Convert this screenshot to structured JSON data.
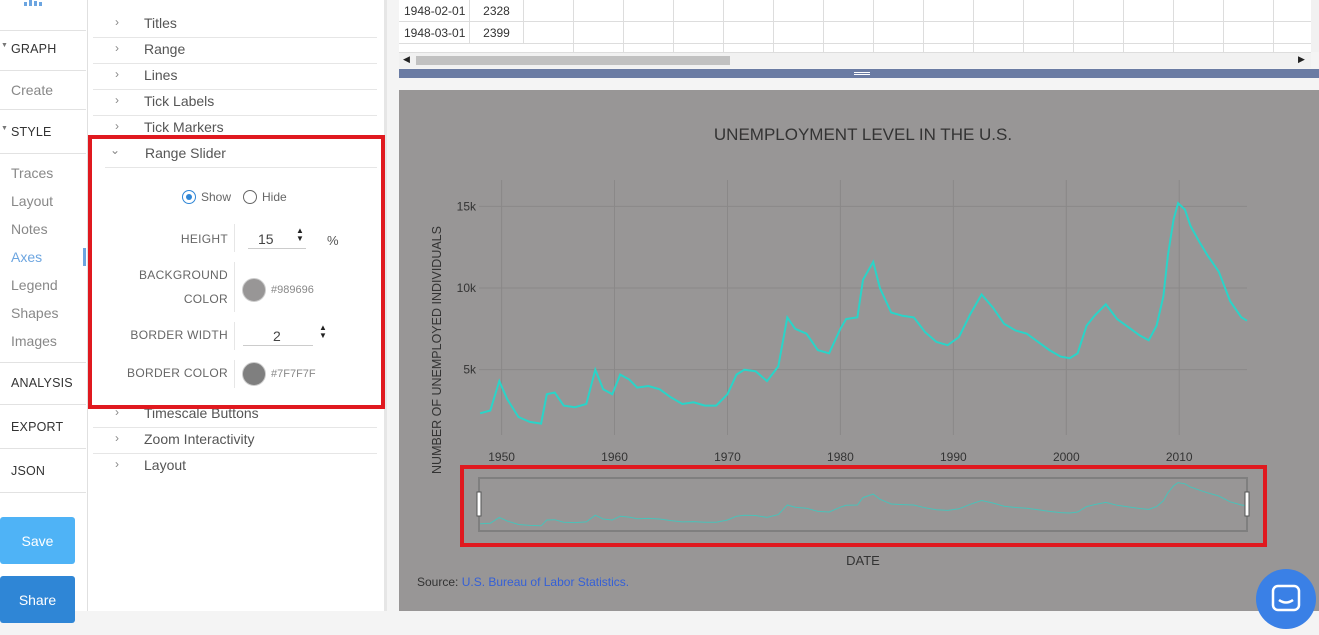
{
  "nav": {
    "sections": [
      {
        "label": "GRAPH",
        "expandable": true
      },
      {
        "label": "STYLE",
        "expandable": true
      },
      {
        "label": "ANALYSIS",
        "expandable": false
      },
      {
        "label": "EXPORT",
        "expandable": false
      },
      {
        "label": "JSON",
        "expandable": false
      }
    ],
    "create_label": "Create",
    "style_items": [
      "Traces",
      "Layout",
      "Notes",
      "Axes",
      "Legend",
      "Shapes",
      "Images"
    ],
    "active_item": "Axes",
    "save_label": "Save",
    "share_label": "Share",
    "save_color": "#4fb3f6",
    "share_color": "#2f86d6"
  },
  "panel": {
    "sections_above": [
      "Titles",
      "Range",
      "Lines",
      "Tick Labels",
      "Tick Markers"
    ],
    "open_section": "Range Slider",
    "sections_below": [
      "Timescale Buttons",
      "Zoom Interactivity",
      "Layout"
    ],
    "range_slider": {
      "show_label": "Show",
      "hide_label": "Hide",
      "selected": "Show",
      "height_label": "HEIGHT",
      "height_value": "15",
      "height_unit": "%",
      "bg_color_label_1": "BACKGROUND",
      "bg_color_label_2": "COLOR",
      "bg_color_value": "#989696",
      "border_width_label": "BORDER WIDTH",
      "border_width_value": "2",
      "border_color_label": "BORDER COLOR",
      "border_color_value": "#7F7F7F"
    }
  },
  "table": {
    "rows": [
      {
        "date": "1948-02-01",
        "value": "2328"
      },
      {
        "date": "1948-03-01",
        "value": "2399"
      }
    ]
  },
  "chart_data": {
    "type": "line",
    "title": "UNEMPLOYMENT LEVEL IN THE U.S.",
    "xlabel": "DATE",
    "ylabel": "NUMBER OF UNEMPLOYED INDIVIDUALS",
    "x_ticks": [
      "1950",
      "1960",
      "1970",
      "1980",
      "1990",
      "2000",
      "2010"
    ],
    "y_ticks": [
      "5k",
      "10k",
      "15k"
    ],
    "xlim": [
      1948,
      2016
    ],
    "ylim": [
      1000,
      16000
    ],
    "grid": true,
    "background": "#989696",
    "line_color": "#2ad4c8",
    "range_slider": {
      "visible": true,
      "height_pct": 15,
      "border_width": 2,
      "border_color": "#7F7F7F"
    },
    "series": [
      {
        "x": [
          1948.1,
          1949.0,
          1949.8,
          1950.5,
          1951.5,
          1952.5,
          1953.5,
          1954.0,
          1954.7,
          1955.5,
          1956.5,
          1957.5,
          1958.3,
          1959.0,
          1959.8,
          1960.5,
          1961.3,
          1962.0,
          1963.0,
          1964.0,
          1965.0,
          1966.0,
          1967.0,
          1968.0,
          1969.0,
          1970.0,
          1970.8,
          1971.5,
          1972.5,
          1973.5,
          1974.5,
          1975.3,
          1976.0,
          1977.0,
          1978.0,
          1979.0,
          1980.0,
          1980.5,
          1981.5,
          1982.0,
          1982.9,
          1983.5,
          1984.5,
          1985.5,
          1986.5,
          1987.5,
          1988.5,
          1989.5,
          1990.5,
          1991.5,
          1992.5,
          1993.5,
          1994.5,
          1995.5,
          1996.5,
          1997.5,
          1998.5,
          1999.5,
          2000.3,
          2001.0,
          2001.8,
          2002.5,
          2003.5,
          2004.5,
          2005.5,
          2006.5,
          2007.3,
          2008.0,
          2008.6,
          2009.0,
          2009.5,
          2009.9,
          2010.5,
          2011.0,
          2011.8,
          2012.5,
          2013.5,
          2014.5,
          2015.5,
          2016.0
        ],
        "y": [
          2328,
          2500,
          4300,
          3200,
          2100,
          1800,
          1700,
          3500,
          3600,
          2800,
          2700,
          2900,
          5000,
          3800,
          3500,
          4700,
          4400,
          3900,
          4000,
          3800,
          3300,
          2900,
          3000,
          2800,
          2800,
          3500,
          4700,
          5000,
          4900,
          4300,
          5200,
          8200,
          7500,
          7200,
          6200,
          6000,
          7500,
          8100,
          8200,
          10500,
          11600,
          10000,
          8500,
          8300,
          8200,
          7300,
          6700,
          6500,
          7000,
          8400,
          9600,
          8800,
          7800,
          7400,
          7200,
          6700,
          6200,
          5800,
          5700,
          6000,
          7700,
          8300,
          9000,
          8100,
          7600,
          7100,
          6800,
          7700,
          9500,
          12000,
          14200,
          15200,
          14800,
          13800,
          12800,
          12000,
          11000,
          9200,
          8200,
          8000
        ]
      }
    ]
  },
  "source": {
    "prefix": "Source:",
    "link": "U.S. Bureau of Labor Statistics."
  }
}
